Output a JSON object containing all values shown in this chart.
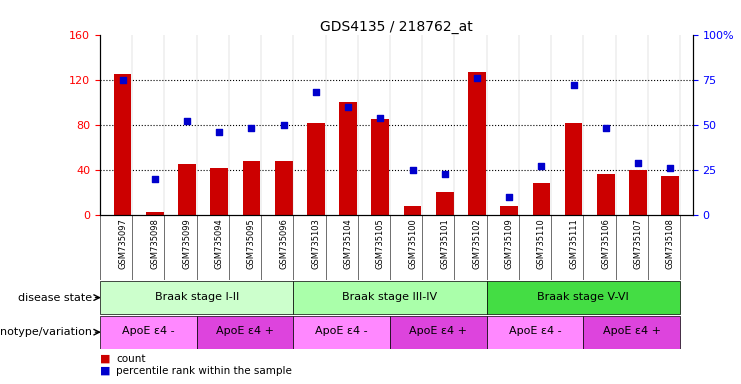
{
  "title": "GDS4135 / 218762_at",
  "samples": [
    "GSM735097",
    "GSM735098",
    "GSM735099",
    "GSM735094",
    "GSM735095",
    "GSM735096",
    "GSM735103",
    "GSM735104",
    "GSM735105",
    "GSM735100",
    "GSM735101",
    "GSM735102",
    "GSM735109",
    "GSM735110",
    "GSM735111",
    "GSM735106",
    "GSM735107",
    "GSM735108"
  ],
  "counts": [
    125,
    3,
    45,
    42,
    48,
    48,
    82,
    100,
    85,
    8,
    20,
    127,
    8,
    28,
    82,
    36,
    40,
    35
  ],
  "percentiles": [
    75,
    20,
    52,
    46,
    48,
    50,
    68,
    60,
    54,
    25,
    23,
    76,
    10,
    27,
    72,
    48,
    29,
    26
  ],
  "ylim_left": [
    0,
    160
  ],
  "ylim_right": [
    0,
    100
  ],
  "yticks_left": [
    0,
    40,
    80,
    120,
    160
  ],
  "yticks_right": [
    0,
    25,
    50,
    75,
    100
  ],
  "ytick_labels_left": [
    "0",
    "40",
    "80",
    "120",
    "160"
  ],
  "ytick_labels_right": [
    "0",
    "25",
    "50",
    "75",
    "100%"
  ],
  "bar_color": "#cc0000",
  "dot_color": "#0000cc",
  "disease_state_groups": [
    {
      "text": "Braak stage I-II",
      "start": 0,
      "end": 6,
      "color": "#ccffcc"
    },
    {
      "text": "Braak stage III-IV",
      "start": 6,
      "end": 12,
      "color": "#aaffaa"
    },
    {
      "text": "Braak stage V-VI",
      "start": 12,
      "end": 18,
      "color": "#44dd44"
    }
  ],
  "genotype_groups": [
    {
      "text": "ApoE ε4 -",
      "start": 0,
      "end": 3,
      "color": "#ff88ff"
    },
    {
      "text": "ApoE ε4 +",
      "start": 3,
      "end": 6,
      "color": "#dd44dd"
    },
    {
      "text": "ApoE ε4 -",
      "start": 6,
      "end": 9,
      "color": "#ff88ff"
    },
    {
      "text": "ApoE ε4 +",
      "start": 9,
      "end": 12,
      "color": "#dd44dd"
    },
    {
      "text": "ApoE ε4 -",
      "start": 12,
      "end": 15,
      "color": "#ff88ff"
    },
    {
      "text": "ApoE ε4 +",
      "start": 15,
      "end": 18,
      "color": "#dd44dd"
    }
  ],
  "disease_label": "disease state",
  "genotype_label": "genotype/variation",
  "grid_yticks": [
    40,
    80,
    120
  ],
  "legend_count_color": "#cc0000",
  "legend_dot_color": "#0000cc",
  "bg_color": "#ffffff",
  "ticklabel_bg": "#cccccc"
}
